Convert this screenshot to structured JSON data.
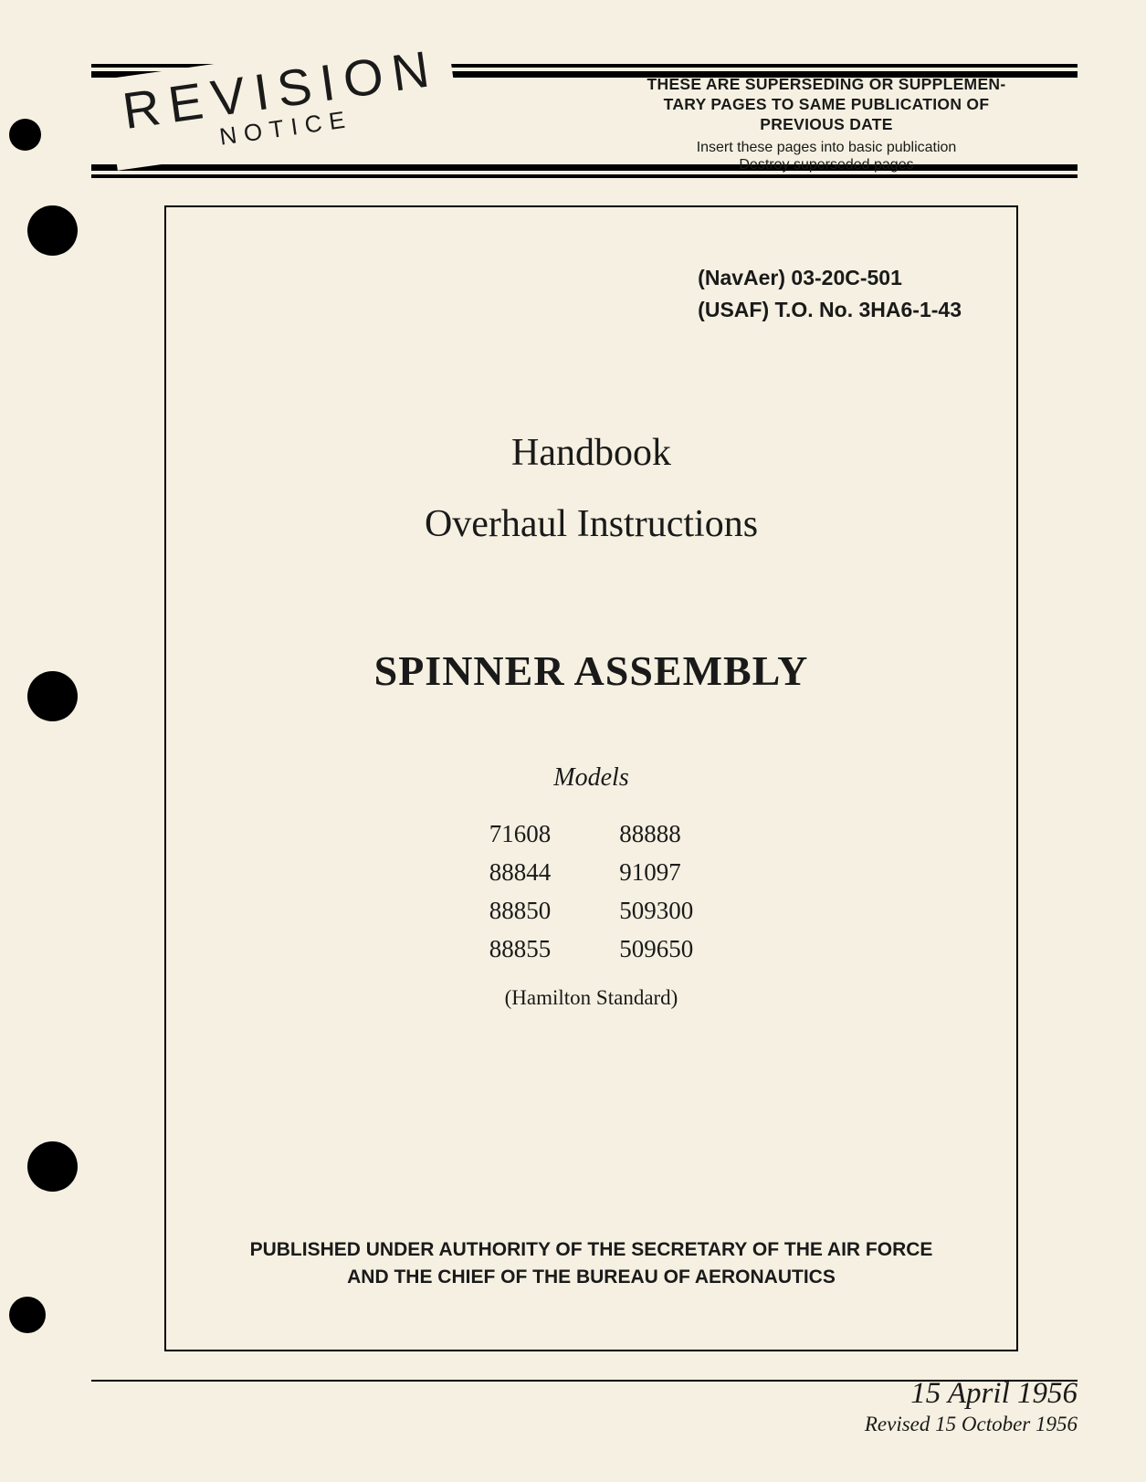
{
  "banner": {
    "revision_main": "REVISION",
    "revision_sub": "NOTICE",
    "heading_line1": "THESE ARE SUPERSEDING OR SUPPLEMEN-",
    "heading_line2": "TARY PAGES TO SAME PUBLICATION OF",
    "heading_line3": "PREVIOUS DATE",
    "sub_line1": "Insert these pages into basic publication",
    "sub_line2": "Destroy superseded pages"
  },
  "doc_refs": {
    "line1": "(NavAer) 03-20C-501",
    "line2": "(USAF) T.O. No. 3HA6-1-43"
  },
  "title": {
    "line1": "Handbook",
    "line2": "Overhaul Instructions",
    "main": "SPINNER ASSEMBLY"
  },
  "models": {
    "label": "Models",
    "col1": [
      "71608",
      "88844",
      "88850",
      "88855"
    ],
    "col2": [
      "88888",
      "91097",
      "509300",
      "509650"
    ],
    "manufacturer": "(Hamilton Standard)"
  },
  "authority": {
    "line1": "PUBLISHED UNDER AUTHORITY OF THE SECRETARY OF THE AIR FORCE",
    "line2": "AND THE CHIEF OF THE BUREAU OF AERONAUTICS"
  },
  "dates": {
    "main": "15 April 1956",
    "revised": "Revised 15 October 1956"
  },
  "colors": {
    "background": "#f5f0e1",
    "text": "#1a1a1a"
  }
}
